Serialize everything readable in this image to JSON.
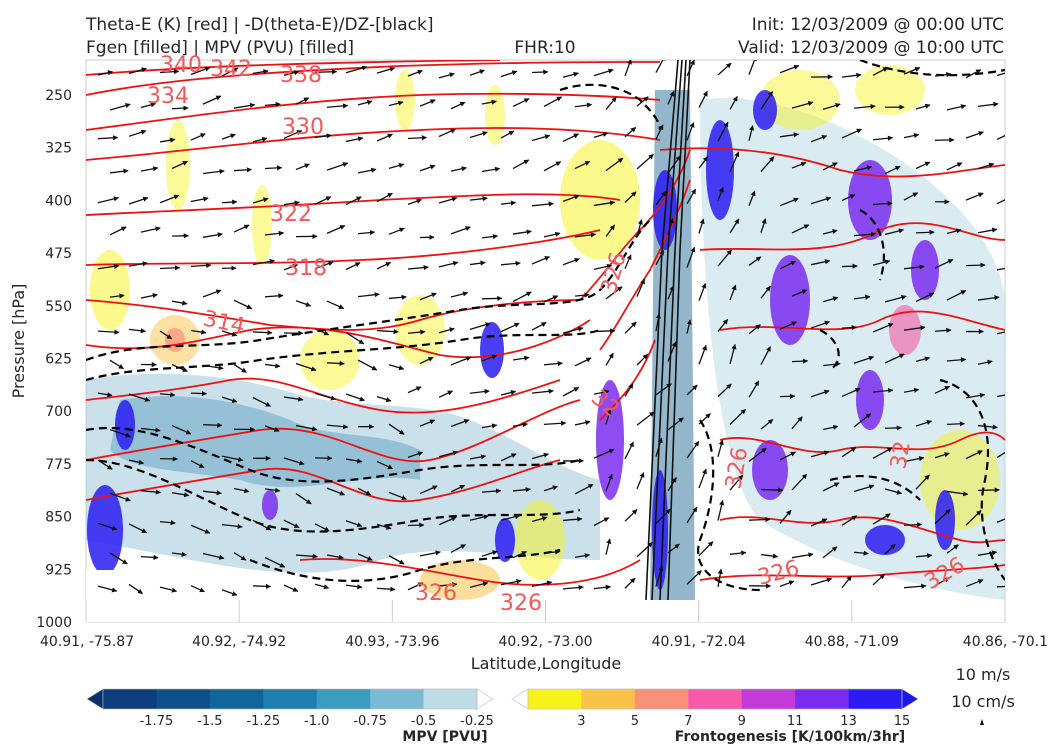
{
  "titles": {
    "left_line1": "Theta-E (K) [red] | -D(theta-E)/DZ-[black]",
    "left_line2": "Fgen [filled] | MPV (PVU) [filled]",
    "center": "FHR:10",
    "right_line1": "Init: 12/03/2009 @ 00:00 UTC",
    "right_line2": "Valid: 12/03/2009 @ 10:00 UTC"
  },
  "chart_data": {
    "type": "cross-section",
    "xlabel": "Latitude,Longitude",
    "ylabel": "Pressure [hPa]",
    "x_ticks": [
      "40.91, -75.87",
      "40.92, -74.92",
      "40.93, -73.96",
      "40.92, -73.00",
      "40.91, -72.04",
      "40.88, -71.09",
      "40.86, -70.1"
    ],
    "y_ticks": [
      "250",
      "325",
      "400",
      "475",
      "550",
      "625",
      "700",
      "775",
      "850",
      "925",
      "1000"
    ],
    "theta_e_labels": [
      "340",
      "342",
      "338",
      "334",
      "330",
      "322",
      "318",
      "314",
      "326",
      "326",
      "326",
      "326",
      "326",
      "326",
      "32",
      "32"
    ],
    "mpv_colorbar": {
      "label": "MPV [PVU]",
      "ticks": [
        "-1.75",
        "-1.5",
        "-1.25",
        "-1.0",
        "-0.75",
        "-0.5",
        "-0.25"
      ],
      "colors": [
        "#08306b",
        "#0d3d7a",
        "#10508a",
        "#12659a",
        "#1e7fae",
        "#3c9cc0",
        "#78bbd3",
        "#bcdce6",
        "#ffffff"
      ]
    },
    "fgen_colorbar": {
      "label": "Frontogenesis [K/100km/3hr]",
      "ticks": [
        "3",
        "5",
        "7",
        "9",
        "11",
        "13",
        "15"
      ],
      "colors": [
        "#ffffff",
        "#f7f21a",
        "#f9c24a",
        "#f9907a",
        "#f75aa7",
        "#c43ad8",
        "#7a2df0",
        "#2a1cf2",
        "#1a16f0"
      ]
    },
    "wind_reference": {
      "label1": "10 m/s",
      "label2": "10 cm/s"
    }
  }
}
